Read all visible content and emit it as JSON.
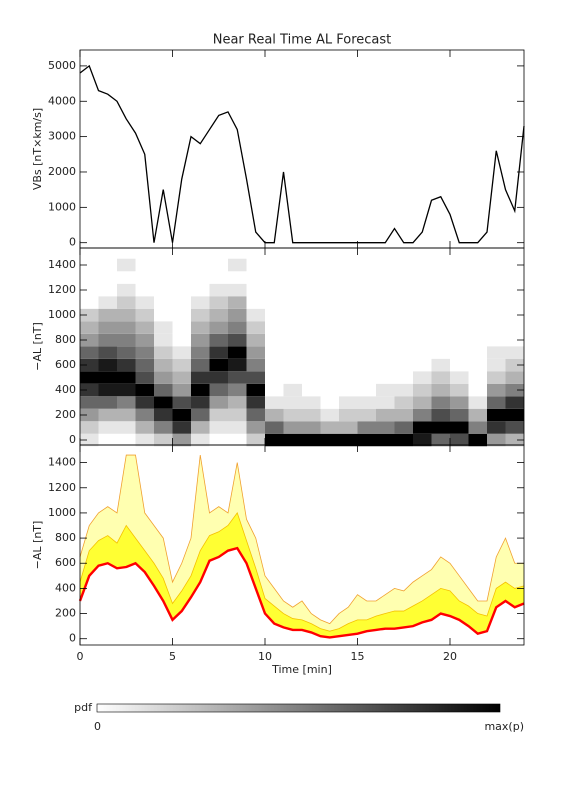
{
  "chart_data": [
    {
      "type": "line",
      "title": "Near Real Time AL Forecast",
      "ylabel": "VBs [nT×km/s]",
      "color": "#000000",
      "xlim": [
        0,
        24
      ],
      "xticks": [
        0,
        5,
        10,
        15,
        20
      ],
      "ylim": [
        -150,
        5450
      ],
      "yticks": [
        0,
        1000,
        2000,
        3000,
        4000,
        5000
      ],
      "x": [
        0,
        0.5,
        1,
        1.5,
        2,
        2.5,
        3,
        3.5,
        4,
        4.5,
        5,
        5.5,
        6,
        6.5,
        7,
        7.5,
        8,
        8.5,
        9,
        9.5,
        10,
        10.5,
        11,
        11.5,
        12,
        12.5,
        13,
        13.5,
        14,
        14.5,
        15,
        15.5,
        16,
        16.5,
        17,
        17.5,
        18,
        18.5,
        19,
        19.5,
        20,
        20.5,
        21,
        21.5,
        22,
        22.5,
        23,
        23.5,
        24
      ],
      "values": [
        4800,
        5000,
        4300,
        4200,
        4000,
        3500,
        3100,
        2500,
        0,
        1500,
        0,
        1800,
        3000,
        2800,
        3200,
        3600,
        3700,
        3200,
        1800,
        300,
        0,
        0,
        2000,
        0,
        0,
        0,
        0,
        0,
        0,
        0,
        0,
        0,
        0,
        0,
        400,
        0,
        0,
        300,
        1200,
        1300,
        800,
        0,
        0,
        0,
        300,
        2600,
        1500,
        900,
        3300
      ]
    },
    {
      "type": "heatmap",
      "ylabel": "−AL [nT]",
      "xlim": [
        0,
        24
      ],
      "xticks": [
        0,
        5,
        10,
        15,
        20
      ],
      "ylim": [
        -40,
        1536
      ],
      "yticks": [
        0,
        200,
        400,
        600,
        800,
        1000,
        1200,
        1400
      ],
      "x": [
        0.5,
        1.5,
        2.5,
        3.5,
        4.5,
        5.5,
        6.5,
        7.5,
        8.5,
        9.5,
        10.5,
        11.5,
        12.5,
        13.5,
        14.5,
        15.5,
        16.5,
        17.5,
        18.5,
        19.5,
        20.5,
        21.5,
        22.5,
        23.5
      ],
      "y": [
        0,
        100,
        200,
        300,
        400,
        500,
        600,
        700,
        800,
        900,
        1000,
        1100,
        1200,
        1300,
        1400
      ],
      "z": [
        [
          0.1,
          0.2,
          0.4,
          0.6,
          0.8,
          1,
          0.8,
          0.6,
          0.4,
          0.3,
          0.2,
          0,
          0,
          0,
          0
        ],
        [
          0,
          0.1,
          0.3,
          0.6,
          0.9,
          1,
          0.9,
          0.7,
          0.5,
          0.4,
          0.3,
          0.1,
          0,
          0,
          0
        ],
        [
          0,
          0.1,
          0.3,
          0.5,
          0.9,
          1,
          0.8,
          0.6,
          0.5,
          0.4,
          0.3,
          0.2,
          0.1,
          0,
          0.1
        ],
        [
          0.1,
          0.3,
          0.5,
          0.8,
          1,
          0.7,
          0.6,
          0.5,
          0.4,
          0.3,
          0.2,
          0.1,
          0,
          0,
          0
        ],
        [
          0.2,
          0.5,
          0.8,
          1,
          0.6,
          0.4,
          0.3,
          0.2,
          0.1,
          0.1,
          0,
          0,
          0,
          0,
          0
        ],
        [
          0.4,
          0.8,
          1,
          0.7,
          0.4,
          0.3,
          0.2,
          0.1,
          0,
          0,
          0,
          0,
          0,
          0,
          0
        ],
        [
          0.1,
          0.3,
          0.6,
          0.8,
          1,
          0.8,
          0.6,
          0.5,
          0.4,
          0.3,
          0.2,
          0.1,
          0,
          0,
          0
        ],
        [
          0,
          0.1,
          0.2,
          0.4,
          0.6,
          0.8,
          1,
          0.8,
          0.6,
          0.4,
          0.3,
          0.2,
          0.1,
          0,
          0
        ],
        [
          0,
          0.1,
          0.2,
          0.3,
          0.5,
          0.7,
          0.9,
          1,
          0.7,
          0.5,
          0.4,
          0.3,
          0.1,
          0,
          0.1
        ],
        [
          0.2,
          0.4,
          0.6,
          0.8,
          1,
          0.7,
          0.5,
          0.4,
          0.3,
          0.2,
          0.1,
          0,
          0,
          0,
          0
        ],
        [
          1,
          0.6,
          0.3,
          0.1,
          0,
          0,
          0,
          0,
          0,
          0,
          0,
          0,
          0,
          0,
          0
        ],
        [
          1,
          0.4,
          0.2,
          0.1,
          0.1,
          0,
          0,
          0,
          0,
          0,
          0,
          0,
          0,
          0,
          0
        ],
        [
          1,
          0.4,
          0.2,
          0.1,
          0,
          0,
          0,
          0,
          0,
          0,
          0,
          0,
          0,
          0,
          0
        ],
        [
          1,
          0.3,
          0.1,
          0,
          0,
          0,
          0,
          0,
          0,
          0,
          0,
          0,
          0,
          0,
          0
        ],
        [
          1,
          0.3,
          0.2,
          0.1,
          0,
          0,
          0,
          0,
          0,
          0,
          0,
          0,
          0,
          0,
          0
        ],
        [
          1,
          0.5,
          0.2,
          0.1,
          0,
          0,
          0,
          0,
          0,
          0,
          0,
          0,
          0,
          0,
          0
        ],
        [
          1,
          0.5,
          0.3,
          0.1,
          0.1,
          0,
          0,
          0,
          0,
          0,
          0,
          0,
          0,
          0,
          0
        ],
        [
          1,
          0.6,
          0.3,
          0.2,
          0.1,
          0,
          0,
          0,
          0,
          0,
          0,
          0,
          0,
          0,
          0
        ],
        [
          0.9,
          1,
          0.5,
          0.3,
          0.2,
          0.1,
          0,
          0,
          0,
          0,
          0,
          0,
          0,
          0,
          0
        ],
        [
          0.6,
          1,
          0.7,
          0.5,
          0.3,
          0.2,
          0.1,
          0,
          0,
          0,
          0,
          0,
          0,
          0,
          0
        ],
        [
          0.7,
          1,
          0.6,
          0.4,
          0.2,
          0.1,
          0,
          0,
          0,
          0,
          0,
          0,
          0,
          0,
          0
        ],
        [
          1,
          0.5,
          0.3,
          0.1,
          0,
          0,
          0,
          0,
          0,
          0,
          0,
          0,
          0,
          0,
          0
        ],
        [
          0.4,
          0.8,
          1,
          0.6,
          0.4,
          0.2,
          0.1,
          0.1,
          0,
          0,
          0,
          0,
          0,
          0,
          0
        ],
        [
          0.3,
          0.7,
          1,
          0.8,
          0.5,
          0.3,
          0.2,
          0.1,
          0,
          0,
          0,
          0,
          0,
          0,
          0
        ]
      ],
      "colorbar": {
        "label": "pdf",
        "min_label": "0",
        "max_label": "max(p)"
      }
    },
    {
      "type": "area",
      "ylabel": "−AL [nT]",
      "xlabel": "Time [min]",
      "xlim": [
        0,
        24
      ],
      "xticks": [
        0,
        5,
        10,
        15,
        20
      ],
      "ylim": [
        -50,
        1540
      ],
      "yticks": [
        0,
        200,
        400,
        600,
        800,
        1000,
        1200,
        1400
      ],
      "x": [
        0,
        0.5,
        1,
        1.5,
        2,
        2.5,
        3,
        3.5,
        4,
        4.5,
        5,
        5.5,
        6,
        6.5,
        7,
        7.5,
        8,
        8.5,
        9,
        9.5,
        10,
        10.5,
        11,
        11.5,
        12,
        12.5,
        13,
        13.5,
        14,
        14.5,
        15,
        15.5,
        16,
        16.5,
        17,
        17.5,
        18,
        18.5,
        19,
        19.5,
        20,
        20.5,
        21,
        21.5,
        22,
        22.5,
        23,
        23.5,
        24
      ],
      "series": [
        {
          "color": "#ff0000",
          "values": [
            300,
            500,
            580,
            600,
            560,
            570,
            600,
            530,
            420,
            300,
            150,
            220,
            330,
            450,
            620,
            650,
            700,
            720,
            600,
            400,
            200,
            120,
            90,
            70,
            70,
            50,
            20,
            10,
            20,
            30,
            40,
            60,
            70,
            80,
            80,
            90,
            100,
            130,
            150,
            200,
            180,
            150,
            100,
            40,
            60,
            250,
            300,
            250,
            280
          ]
        },
        {
          "color": "#ffff33",
          "edgecolor": "#f5c000",
          "values": [
            450,
            700,
            780,
            820,
            760,
            900,
            800,
            700,
            600,
            480,
            280,
            380,
            500,
            700,
            820,
            850,
            900,
            1000,
            780,
            560,
            320,
            260,
            200,
            160,
            150,
            120,
            80,
            60,
            80,
            120,
            150,
            150,
            180,
            200,
            220,
            220,
            260,
            300,
            350,
            400,
            380,
            300,
            260,
            200,
            180,
            400,
            450,
            400,
            420
          ]
        },
        {
          "color": "#ffffb0",
          "edgecolor": "#f0a030",
          "values": [
            650,
            900,
            1000,
            1050,
            1000,
            1460,
            1460,
            1000,
            900,
            800,
            450,
            600,
            800,
            1460,
            1000,
            1050,
            1000,
            1400,
            950,
            800,
            500,
            400,
            300,
            250,
            300,
            200,
            150,
            120,
            200,
            250,
            350,
            300,
            300,
            350,
            400,
            380,
            450,
            500,
            550,
            650,
            600,
            500,
            400,
            300,
            300,
            650,
            800,
            600,
            600
          ]
        }
      ]
    }
  ]
}
